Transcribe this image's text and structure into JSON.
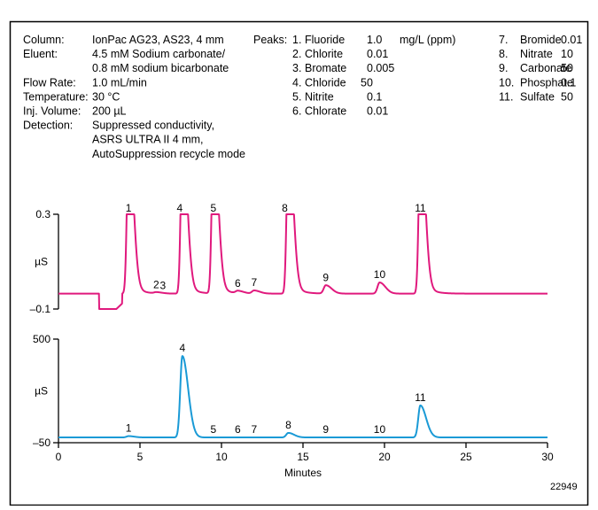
{
  "conditions": [
    {
      "label": "Column:",
      "lines": [
        "IonPac AG23, AS23, 4 mm"
      ]
    },
    {
      "label": "Eluent:",
      "lines": [
        "4.5 mM Sodium carbonate/",
        "0.8 mM sodium bicarbonate"
      ]
    },
    {
      "label": "Flow Rate:",
      "lines": [
        "1.0 mL/min"
      ]
    },
    {
      "label": "Temperature:",
      "lines": [
        "30 °C"
      ]
    },
    {
      "label": "Inj. Volume:",
      "lines": [
        "200 µL"
      ]
    },
    {
      "label": "Detection:",
      "lines": [
        "Suppressed conductivity,",
        "ASRS ULTRA II 4 mm,",
        "AutoSuppression recycle mode"
      ]
    }
  ],
  "peaks_table": {
    "heading": "Peaks:",
    "unit": "mg/L (ppm)",
    "items": [
      {
        "num": "1.",
        "name": "Fluoride",
        "conc": "1.0"
      },
      {
        "num": "2.",
        "name": "Chlorite",
        "conc": "0.01"
      },
      {
        "num": "3.",
        "name": "Bromate",
        "conc": "0.005"
      },
      {
        "num": "4.",
        "name": "Chloride",
        "conc": "50"
      },
      {
        "num": "5.",
        "name": "Nitrite",
        "conc": "0.1"
      },
      {
        "num": "6.",
        "name": "Chlorate",
        "conc": "0.01"
      },
      {
        "num": "7.",
        "name": "Bromide",
        "conc": "0.01"
      },
      {
        "num": "8.",
        "name": "Nitrate",
        "conc": "10"
      },
      {
        "num": "9.",
        "name": "Carbonate",
        "conc": "50"
      },
      {
        "num": "10.",
        "name": "Phosphate",
        "conc": "0.1"
      },
      {
        "num": "11.",
        "name": "Sulfate",
        "conc": "50"
      }
    ]
  },
  "figure_id": "22949",
  "chart_data": [
    {
      "type": "line",
      "title": "",
      "xlabel": "Minutes",
      "ylabel": "µS",
      "xlim": [
        0,
        30
      ],
      "ylim": [
        -0.1,
        0.3
      ],
      "ytick_labels": [
        "0.3",
        "µS",
        "–0.1"
      ],
      "color": "#e0197d",
      "baseline": -0.035,
      "clipped_above": 0.3,
      "dip": {
        "start": 2.5,
        "end": 3.9,
        "value": -0.1
      },
      "peaks": [
        {
          "label": "1",
          "x": 4.3,
          "y": 0.6
        },
        {
          "label": "2",
          "x": 6.0,
          "y": -0.03
        },
        {
          "label": "3",
          "x": 6.35,
          "y": -0.035
        },
        {
          "label": "4",
          "x": 7.6,
          "y": 0.6
        },
        {
          "label": "5",
          "x": 9.5,
          "y": 0.6
        },
        {
          "label": "6",
          "x": 11.0,
          "y": -0.025
        },
        {
          "label": "7",
          "x": 12.0,
          "y": -0.022
        },
        {
          "label": "8",
          "x": 14.1,
          "y": 0.6
        },
        {
          "label": "9",
          "x": 16.4,
          "y": 0.0
        },
        {
          "label": "10",
          "x": 19.7,
          "y": 0.012
        },
        {
          "label": "11",
          "x": 22.2,
          "y": 0.6
        }
      ]
    },
    {
      "type": "line",
      "title": "",
      "xlabel": "Minutes",
      "ylabel": "µS",
      "xlim": [
        0,
        30
      ],
      "ylim": [
        -50,
        500
      ],
      "ytick_labels": [
        "500",
        "µS",
        "–50"
      ],
      "xtick_labels": [
        "0",
        "5",
        "10",
        "15",
        "20",
        "25",
        "30"
      ],
      "color": "#1a9ad6",
      "baseline": -22,
      "peaks": [
        {
          "label": "1",
          "x": 4.3,
          "y": -15
        },
        {
          "label": "4",
          "x": 7.6,
          "y": 410
        },
        {
          "label": "5",
          "x": 9.5,
          "y": -22
        },
        {
          "label": "6",
          "x": 11.0,
          "y": -22
        },
        {
          "label": "7",
          "x": 12.0,
          "y": -22
        },
        {
          "label": "8",
          "x": 14.1,
          "y": 2
        },
        {
          "label": "9",
          "x": 16.4,
          "y": -22
        },
        {
          "label": "10",
          "x": 19.7,
          "y": -22
        },
        {
          "label": "11",
          "x": 22.2,
          "y": 148
        }
      ]
    }
  ]
}
